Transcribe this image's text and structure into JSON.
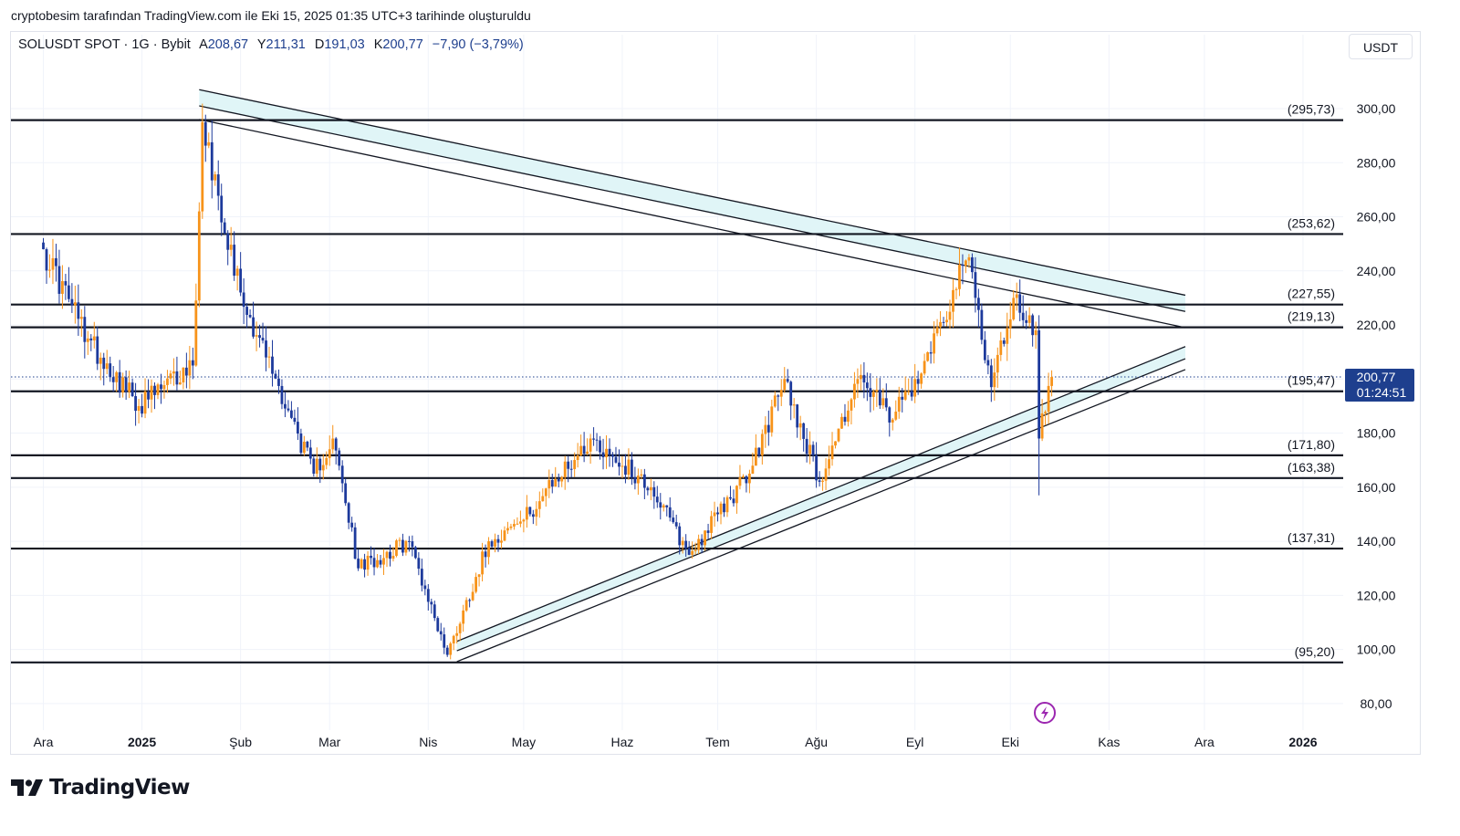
{
  "caption": "cryptobesim tarafından TradingView.com ile Eki 15, 2025 01:35 UTC+3 tarihinde oluşturuldu",
  "header": {
    "symbol": "SOLUSDT SPOT · 1G · Bybit",
    "open_label": "A",
    "open": "208,67",
    "high_label": "Y",
    "high": "211,31",
    "low_label": "D",
    "low": "191,03",
    "close_label": "K",
    "close": "200,77",
    "change": "−7,90 (−3,79%)",
    "currency_button": "USDT"
  },
  "price_badge": {
    "price": "200,77",
    "countdown": "01:24:51"
  },
  "brand": "TradingView",
  "chart_data": {
    "type": "candlestick",
    "symbol": "SOLUSDT",
    "interval": "1G",
    "exchange": "Bybit",
    "y_axis": {
      "side": "right",
      "ticks": [
        "300,00",
        "280,00",
        "260,00",
        "240,00",
        "220,00",
        "200,00",
        "180,00",
        "160,00",
        "140,00",
        "120,00",
        "100,00",
        "80,00"
      ],
      "ylim": [
        75,
        312
      ]
    },
    "x_axis": {
      "labels": [
        "Ara",
        "2025",
        "Şub",
        "Mar",
        "Nis",
        "May",
        "Haz",
        "Tem",
        "Ağu",
        "Eyl",
        "Eki",
        "Kas",
        "Ara",
        "2026"
      ],
      "bold": [
        "2025",
        "2026"
      ]
    },
    "last_price": 200.77,
    "horizontal_levels": [
      {
        "value": 295.73,
        "label": "(295,73)"
      },
      {
        "value": 253.62,
        "label": "(253,62)"
      },
      {
        "value": 227.55,
        "label": "(227,55)"
      },
      {
        "value": 219.13,
        "label": "(219,13)"
      },
      {
        "value": 195.47,
        "label": "(195,47)"
      },
      {
        "value": 171.8,
        "label": "(171,80)"
      },
      {
        "value": 163.38,
        "label": "(163,38)"
      },
      {
        "value": 137.31,
        "label": "(137,31)"
      },
      {
        "value": 95.2,
        "label": "(95,20)"
      }
    ],
    "channels": [
      {
        "name": "descending",
        "start": "2025-01-19",
        "end": "2025-11-25",
        "lines": [
          [
            307,
            231
          ],
          [
            301,
            225
          ],
          [
            296,
            219
          ]
        ]
      },
      {
        "name": "ascending",
        "start": "2025-04-10",
        "end": "2025-11-25",
        "lines": [
          [
            103,
            212
          ],
          [
            99.5,
            207.5
          ],
          [
            95.5,
            203.5
          ]
        ]
      }
    ],
    "colors": {
      "up": "#f7931a",
      "down": "#1d3a9c",
      "channel_fill": "#e0f5f7",
      "price_badge": "#1e3f8e"
    },
    "key_points": [
      {
        "date": "2024-12-01",
        "close": 248
      },
      {
        "date": "2024-12-15",
        "close": 215
      },
      {
        "date": "2024-12-31",
        "close": 190
      },
      {
        "date": "2025-01-17",
        "close": 205
      },
      {
        "date": "2025-01-19",
        "close": 262
      },
      {
        "date": "2025-01-20",
        "close": 295
      },
      {
        "date": "2025-02-01",
        "close": 232
      },
      {
        "date": "2025-02-24",
        "close": 165
      },
      {
        "date": "2025-03-02",
        "close": 178
      },
      {
        "date": "2025-03-10",
        "close": 130
      },
      {
        "date": "2025-03-26",
        "close": 140
      },
      {
        "date": "2025-04-07",
        "close": 98
      },
      {
        "date": "2025-04-20",
        "close": 140
      },
      {
        "date": "2025-05-01",
        "close": 148
      },
      {
        "date": "2025-05-22",
        "close": 178
      },
      {
        "date": "2025-06-10",
        "close": 160
      },
      {
        "date": "2025-06-22",
        "close": 135
      },
      {
        "date": "2025-07-01",
        "close": 150
      },
      {
        "date": "2025-07-11",
        "close": 165
      },
      {
        "date": "2025-07-22",
        "close": 200
      },
      {
        "date": "2025-08-02",
        "close": 162
      },
      {
        "date": "2025-08-14",
        "close": 200
      },
      {
        "date": "2025-08-25",
        "close": 185
      },
      {
        "date": "2025-09-01",
        "close": 200
      },
      {
        "date": "2025-09-18",
        "close": 245
      },
      {
        "date": "2025-09-25",
        "close": 197
      },
      {
        "date": "2025-10-02",
        "close": 230
      },
      {
        "date": "2025-10-09",
        "close": 218
      },
      {
        "date": "2025-10-10",
        "close": 178
      },
      {
        "date": "2025-10-14",
        "close": 200.77
      }
    ]
  }
}
